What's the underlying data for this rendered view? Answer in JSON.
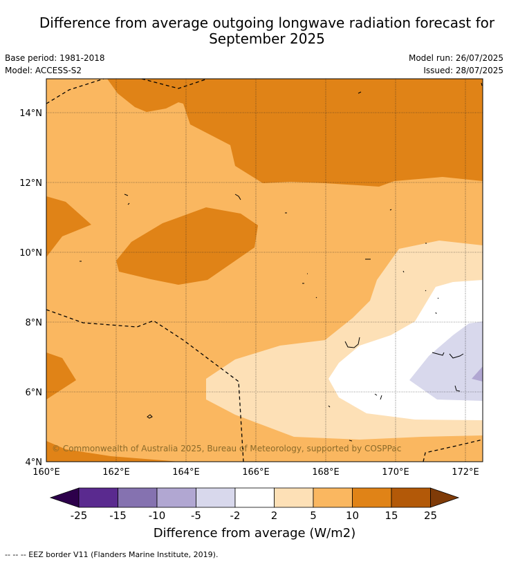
{
  "title_line1": "Difference from average outgoing longwave radiation forecast for",
  "title_line2": "September 2025",
  "meta": {
    "base_period": "Base period: 1981-2018",
    "model": "Model: ACCESS-S2",
    "model_run": "Model run: 26/07/2025",
    "issued": "Issued: 28/07/2025"
  },
  "map": {
    "lon_labels": [
      "160°E",
      "162°E",
      "164°E",
      "166°E",
      "168°E",
      "170°E",
      "172°E"
    ],
    "lat_labels": [
      "14°N",
      "12°N",
      "10°N",
      "8°N",
      "6°N",
      "4°N"
    ],
    "copyright": "© Commonwealth of Australia 2025, Bureau of Meteorology, supported by COSPPac"
  },
  "colorbar": {
    "ticks": [
      "-25",
      "-15",
      "-10",
      "-5",
      "-2",
      "2",
      "5",
      "10",
      "15",
      "25"
    ],
    "colors": [
      "#5a2a8f",
      "#8572b0",
      "#b1a7d2",
      "#d8d8ec",
      "#ffffff",
      "#fde0b6",
      "#fab760",
      "#e08317",
      "#b35908"
    ],
    "end_low": "#2d004b",
    "end_high": "#7f3b08",
    "title": "Difference from average (W/m2)"
  },
  "footnote": "--  --  -- EEZ border V11 (Flanders Marine Institute, 2019)."
}
